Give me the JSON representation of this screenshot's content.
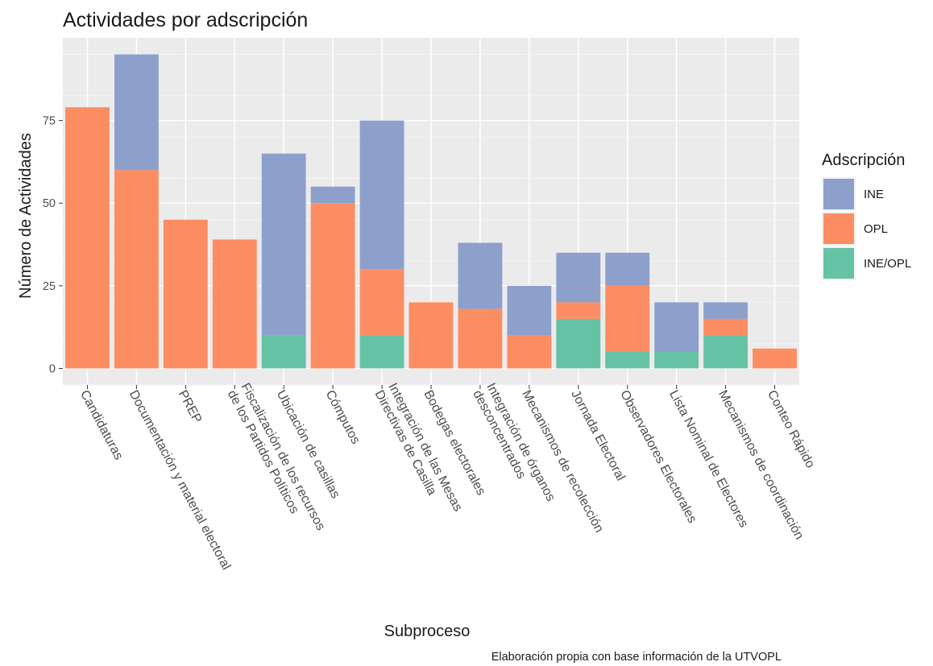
{
  "chart_data": {
    "type": "bar",
    "stacked": true,
    "title": "Actividades por adscripción",
    "xlabel": "Subproceso",
    "ylabel": "Número de Actividades",
    "caption": "Elaboración propia con base información de la UTVOPL",
    "ylim": [
      -5,
      100
    ],
    "yticks": [
      0,
      25,
      50,
      75
    ],
    "grid": true,
    "legend_position": "right",
    "legend_title": "Adscripción",
    "categories": [
      [
        "Candidaturas"
      ],
      [
        "Documentación y material electoral"
      ],
      [
        "PREP"
      ],
      [
        "Fiscalización de los recursos",
        "de los Partidos Políticos"
      ],
      [
        "Ubicación de casillas"
      ],
      [
        "Cómputos"
      ],
      [
        "Integración de las Mesas",
        "Directivas de Casilla"
      ],
      [
        "Bodegas electorales"
      ],
      [
        "Integración de órganos",
        "desconcentrados"
      ],
      [
        "Mecanismos de recolección"
      ],
      [
        "Jornada Electoral"
      ],
      [
        "Observadores Electorales"
      ],
      [
        "Lista Nominal de Electores"
      ],
      [
        "Mecanismos de coordinación"
      ],
      [
        "Conteo Rápido"
      ]
    ],
    "series": [
      {
        "name": "INE/OPL",
        "color": "#66c2a5",
        "values": [
          0,
          0,
          0,
          0,
          10,
          0,
          10,
          0,
          0,
          0,
          15,
          5,
          5,
          10,
          0
        ]
      },
      {
        "name": "OPL",
        "color": "#fc8d62",
        "values": [
          79,
          60,
          45,
          39,
          0,
          50,
          20,
          20,
          18,
          10,
          5,
          20,
          0,
          5,
          6
        ]
      },
      {
        "name": "INE",
        "color": "#8da0cb",
        "values": [
          0,
          35,
          0,
          0,
          55,
          5,
          45,
          0,
          20,
          15,
          15,
          10,
          15,
          5,
          0
        ]
      }
    ],
    "legend_order": [
      "INE",
      "OPL",
      "INE/OPL"
    ]
  }
}
